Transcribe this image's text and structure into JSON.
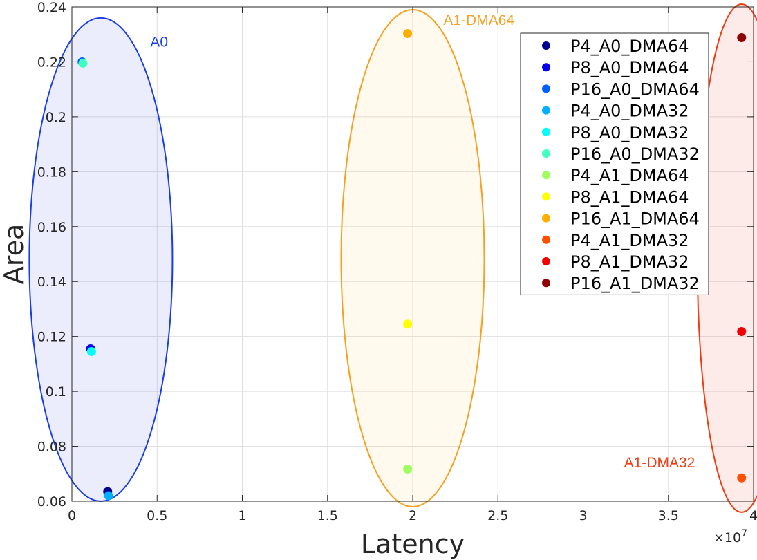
{
  "chart_data": {
    "type": "scatter",
    "title": "",
    "xlabel": "Latency",
    "ylabel": "Area",
    "x_exponent_label": "×10",
    "x_exponent_power": "7",
    "x_multiplier": 10000000,
    "xlim": [
      0,
      4
    ],
    "ylim": [
      0.06,
      0.24
    ],
    "xticks": [
      0,
      0.5,
      1,
      1.5,
      2,
      2.5,
      3,
      3.5,
      4
    ],
    "xtick_labels": [
      "0",
      "0.5",
      "1",
      "1.5",
      "2",
      "2.5",
      "3",
      "3.5",
      "4"
    ],
    "yticks": [
      0.06,
      0.08,
      0.1,
      0.12,
      0.14,
      0.16,
      0.18,
      0.2,
      0.22,
      0.24
    ],
    "ytick_labels": [
      "0.06",
      "0.08",
      "0.1",
      "0.12",
      "0.14",
      "0.16",
      "0.18",
      "0.2",
      "0.22",
      "0.24"
    ],
    "grid": true,
    "legend_position": "top-right",
    "series": [
      {
        "name": "P4_A0_DMA64",
        "color": "#00008f",
        "x": 0.21,
        "y": 0.0635
      },
      {
        "name": "P8_A0_DMA64",
        "color": "#0000ef",
        "x": 0.11,
        "y": 0.1155
      },
      {
        "name": "P16_A0_DMA64",
        "color": "#0060ff",
        "x": 0.06,
        "y": 0.22
      },
      {
        "name": "P4_A0_DMA32",
        "color": "#00afff",
        "x": 0.215,
        "y": 0.062
      },
      {
        "name": "P8_A0_DMA32",
        "color": "#00ffff",
        "x": 0.115,
        "y": 0.1145
      },
      {
        "name": "P16_A0_DMA32",
        "color": "#40ffbf",
        "x": 0.065,
        "y": 0.2195
      },
      {
        "name": "P4_A1_DMA64",
        "color": "#a0ff60",
        "x": 1.97,
        "y": 0.0717
      },
      {
        "name": "P8_A1_DMA64",
        "color": "#ffff00",
        "x": 1.97,
        "y": 0.1245
      },
      {
        "name": "P16_A1_DMA64",
        "color": "#ffaf00",
        "x": 1.97,
        "y": 0.2303
      },
      {
        "name": "P4_A1_DMA32",
        "color": "#ff5000",
        "x": 3.93,
        "y": 0.0685
      },
      {
        "name": "P8_A1_DMA32",
        "color": "#f00000",
        "x": 3.93,
        "y": 0.1218
      },
      {
        "name": "P16_A1_DMA32",
        "color": "#900000",
        "x": 3.93,
        "y": 0.2288
      }
    ],
    "annotations": [
      {
        "text": "A0",
        "color": "#1a3ee6",
        "cx": 0.17,
        "cy": 0.148,
        "rx": 0.42,
        "ry": 0.088,
        "fill": "rgba(40,60,220,0.09)",
        "label_x": 0.46,
        "label_y": 0.2255
      },
      {
        "text": "A1-DMA64",
        "color": "#f5a020",
        "cx": 2.0,
        "cy": 0.1485,
        "rx": 0.42,
        "ry": 0.0905,
        "fill": "rgba(255,200,60,0.09)",
        "label_x": 2.18,
        "label_y": 0.2335
      },
      {
        "text": "A1-DMA32",
        "color": "#f03a10",
        "cx": 3.93,
        "cy": 0.1485,
        "rx": 0.26,
        "ry": 0.0925,
        "fill": "rgba(240,60,40,0.10)",
        "label_x": 3.24,
        "label_y": 0.0723
      }
    ]
  }
}
